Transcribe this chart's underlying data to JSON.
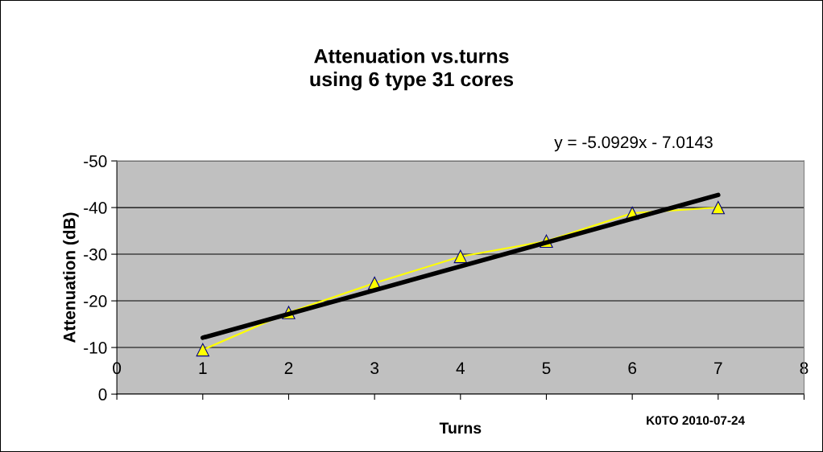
{
  "chart_data": {
    "type": "line",
    "title": "Attenuation vs.turns\nusing 6 type 31 cores",
    "xlabel": "Turns",
    "ylabel": "Attenuation (dB)",
    "x": [
      1,
      2,
      3,
      4,
      5,
      6,
      7
    ],
    "series": [
      {
        "color": "#ffff00",
        "values": [
          -9.5,
          -17.5,
          -23.8,
          -29.5,
          -32.8,
          -38.8,
          -40
        ],
        "marker": "triangle"
      },
      {
        "type": "line",
        "color": "#000000",
        "x": [
          1,
          7
        ],
        "values": [
          -12.1,
          -42.7
        ],
        "marker": "none"
      }
    ],
    "xlim": [
      0,
      8
    ],
    "xticks": [
      0,
      1,
      2,
      3,
      4,
      5,
      6,
      7,
      8
    ],
    "ylim": [
      0,
      -50
    ],
    "yticks": [
      0,
      -10,
      -20,
      -30,
      -40,
      -50
    ],
    "grid": "y",
    "annotations": [
      "y = -5.0929x - 7.0143",
      "K0TO 2010-07-24"
    ]
  }
}
